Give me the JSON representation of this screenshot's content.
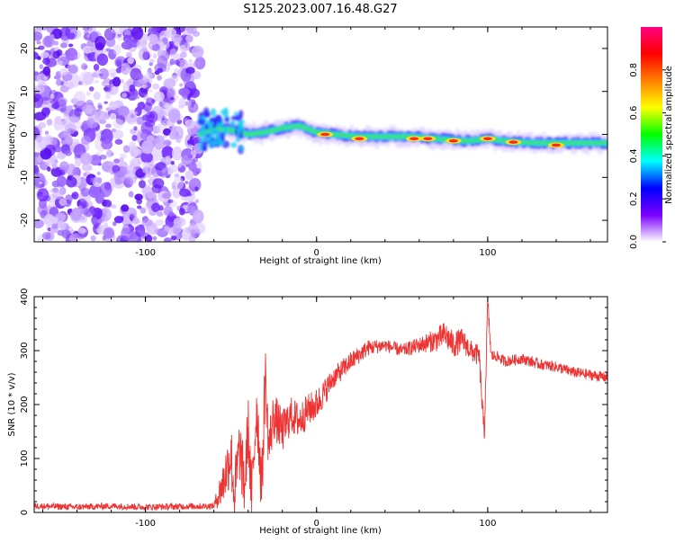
{
  "title": "S125.2023.007.16.48.G27",
  "chart_data": [
    {
      "type": "heatmap",
      "title": "S125.2023.007.16.48.G27",
      "xlabel": "Height of straight line (km)",
      "ylabel": "Frequency (Hz)",
      "xlim": [
        -165,
        170
      ],
      "ylim": [
        -25,
        25
      ],
      "x_ticks": [
        -100,
        0,
        100
      ],
      "y_ticks": [
        -20,
        -10,
        0,
        10,
        20
      ],
      "colorbar": {
        "label": "Normalized spectral amplitude",
        "range": [
          0,
          1
        ],
        "ticks": [
          0.0,
          0.2,
          0.4,
          0.6,
          0.8
        ],
        "tick_labels": [
          "0.0",
          "0.2",
          "0.4",
          "0.6",
          "0.8"
        ],
        "colors": [
          "#ffffff",
          "#7a00ff",
          "#0000ff",
          "#00ffff",
          "#00ff00",
          "#ffff00",
          "#ff8000",
          "#ff0000",
          "#ff0080"
        ]
      },
      "noise_region_x": [
        -165,
        -68
      ],
      "ridge": [
        {
          "x": -68,
          "y": 0.0
        },
        {
          "x": -60,
          "y": 1.5
        },
        {
          "x": -50,
          "y": 1.0
        },
        {
          "x": -40,
          "y": 0.0
        },
        {
          "x": -30,
          "y": 0.5
        },
        {
          "x": -20,
          "y": 1.5
        },
        {
          "x": -10,
          "y": 2.0
        },
        {
          "x": 0,
          "y": 0.5
        },
        {
          "x": 10,
          "y": 0.0
        },
        {
          "x": 25,
          "y": -0.5
        },
        {
          "x": 40,
          "y": -0.5
        },
        {
          "x": 55,
          "y": -0.5
        },
        {
          "x": 70,
          "y": -1.0
        },
        {
          "x": 85,
          "y": -1.5
        },
        {
          "x": 90,
          "y": -1.5
        },
        {
          "x": 100,
          "y": -1.0
        },
        {
          "x": 115,
          "y": -1.8
        },
        {
          "x": 130,
          "y": -2.0
        },
        {
          "x": 150,
          "y": -2.0
        },
        {
          "x": 170,
          "y": -2.0
        }
      ],
      "hotspots": [
        {
          "x": 5,
          "y": 0.0
        },
        {
          "x": 25,
          "y": -1.0
        },
        {
          "x": 57,
          "y": -1.0
        },
        {
          "x": 65,
          "y": -1.0
        },
        {
          "x": 80,
          "y": -1.5
        },
        {
          "x": 100,
          "y": -1.0
        },
        {
          "x": 115,
          "y": -1.8
        },
        {
          "x": 140,
          "y": -2.5
        }
      ]
    },
    {
      "type": "line",
      "xlabel": "Height of straight line (km)",
      "ylabel": "SNR (10 * v/v)",
      "xlim": [
        -165,
        170
      ],
      "ylim": [
        0,
        400
      ],
      "x_ticks": [
        -100,
        0,
        100
      ],
      "y_ticks": [
        0,
        100,
        200,
        300,
        400
      ],
      "color": "#ee3333",
      "series": [
        {
          "x": [
            -165,
            -140,
            -120,
            -100,
            -80,
            -60,
            -55,
            -50,
            -48,
            -45,
            -42,
            -40,
            -38,
            -35,
            -32,
            -30,
            -28,
            -25,
            -20,
            -15,
            -10,
            -5,
            0,
            10,
            20,
            30,
            40,
            50,
            60,
            70,
            75,
            80,
            85,
            90,
            95,
            98,
            100,
            102,
            105,
            110,
            120,
            130,
            140,
            150,
            160,
            170
          ],
          "y": [
            12,
            10,
            12,
            10,
            11,
            12,
            50,
            110,
            30,
            120,
            45,
            160,
            25,
            200,
            40,
            260,
            120,
            180,
            150,
            180,
            170,
            190,
            200,
            250,
            280,
            305,
            310,
            300,
            310,
            320,
            330,
            310,
            320,
            300,
            290,
            140,
            390,
            290,
            290,
            280,
            285,
            275,
            270,
            260,
            255,
            250
          ],
          "noise_amplitude": [
            6,
            6,
            6,
            6,
            6,
            6,
            40,
            60,
            60,
            60,
            60,
            60,
            60,
            60,
            60,
            60,
            50,
            45,
            40,
            35,
            35,
            30,
            30,
            20,
            18,
            15,
            12,
            12,
            15,
            22,
            25,
            25,
            22,
            20,
            20,
            20,
            20,
            12,
            10,
            10,
            10,
            10,
            10,
            10,
            10,
            10
          ]
        }
      ]
    }
  ]
}
